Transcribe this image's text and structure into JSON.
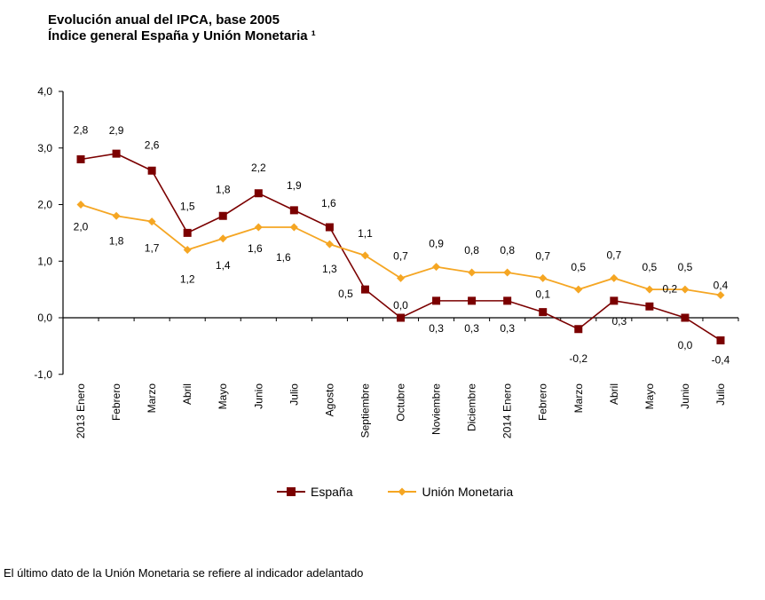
{
  "title": {
    "line1": "Evolución anual del IPCA, base 2005",
    "line2": "Índice general España y Unión Monetaria ¹"
  },
  "footnote": "El último dato de la Unión Monetaria se refiere al indicador adelantado",
  "colors": {
    "espana": "#7B0000",
    "union": "#F5A623"
  },
  "chart_data": {
    "type": "line",
    "title": "Evolución anual del IPCA, base 2005 — Índice general España y Unión Monetaria",
    "xlabel": "",
    "ylabel": "",
    "ylim": [
      -1.0,
      4.0
    ],
    "yticks": [
      -1.0,
      0.0,
      1.0,
      2.0,
      3.0,
      4.0
    ],
    "ytick_labels": [
      "-1,0",
      "0,0",
      "1,0",
      "2,0",
      "3,0",
      "4,0"
    ],
    "grid": false,
    "legend_position": "bottom-center",
    "categories": [
      "2013 Enero",
      "Febrero",
      "Marzo",
      "Abril",
      "Mayo",
      "Junio",
      "Julio",
      "Agosto",
      "Septiembre",
      "Octubre",
      "Noviembre",
      "Diciembre",
      "2014 Enero",
      "Febrero",
      "Marzo",
      "Abril",
      "Mayo",
      "Junio",
      "Julio"
    ],
    "series": [
      {
        "name": "España",
        "marker": "square",
        "color": "#7B0000",
        "values": [
          2.8,
          2.9,
          2.6,
          1.5,
          1.8,
          2.2,
          1.9,
          1.6,
          0.5,
          0.0,
          0.3,
          0.3,
          0.3,
          0.1,
          -0.2,
          0.3,
          0.2,
          0.0,
          -0.4
        ],
        "labels": [
          "2,8",
          "2,9",
          "2,6",
          "1,5",
          "1,8",
          "2,2",
          "1,9",
          "1,6",
          "0,5",
          "0,0",
          "0,3",
          "0,3",
          "0,3",
          "0,1",
          "-0,2",
          "0,3",
          "0,2",
          "0,0",
          "-0,4"
        ]
      },
      {
        "name": "Unión Monetaria",
        "marker": "diamond",
        "color": "#F5A623",
        "values": [
          2.0,
          1.8,
          1.7,
          1.2,
          1.4,
          1.6,
          1.6,
          1.3,
          1.1,
          0.7,
          0.9,
          0.8,
          0.8,
          0.7,
          0.5,
          0.7,
          0.5,
          0.5,
          0.4
        ],
        "labels": [
          "2,0",
          "1,8",
          "1,7",
          "1,2",
          "1,4",
          "1,6",
          "1,6",
          "1,3",
          "1,1",
          "0,7",
          "0,9",
          "0,8",
          "0,8",
          "0,7",
          "0,5",
          "0,7",
          "0,5",
          "0,5",
          "0,4"
        ]
      }
    ]
  }
}
